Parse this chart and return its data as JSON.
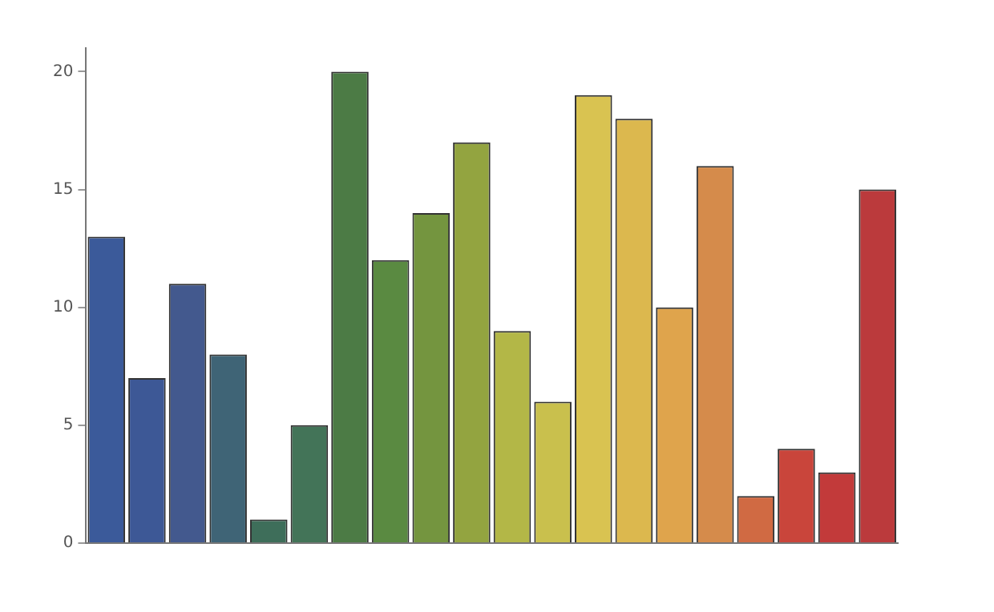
{
  "chart_data": {
    "type": "bar",
    "categories": [
      null,
      null,
      null,
      null,
      null,
      null,
      null,
      null,
      null,
      null,
      null,
      null,
      null,
      null,
      null,
      null,
      null,
      null,
      null,
      null
    ],
    "values": [
      13,
      7,
      11,
      8,
      1,
      5,
      20,
      12,
      14,
      17,
      9,
      6,
      19,
      18,
      10,
      16,
      2,
      4,
      3,
      15
    ],
    "colors": [
      "#3b5a9a",
      "#3d5896",
      "#43598e",
      "#3f6476",
      "#3e6e5a",
      "#437458",
      "#4c7b45",
      "#5a8a41",
      "#74953f",
      "#93a440",
      "#b3b747",
      "#c9c04d",
      "#d9c351",
      "#dcb84e",
      "#dfa44c",
      "#d58b4b",
      "#d06a43",
      "#c9453b",
      "#c23a3a",
      "#bb3a3c"
    ],
    "ylim": [
      0,
      21
    ],
    "yticks": [
      0,
      5,
      10,
      15,
      20
    ],
    "grid": false,
    "legend": false
  }
}
